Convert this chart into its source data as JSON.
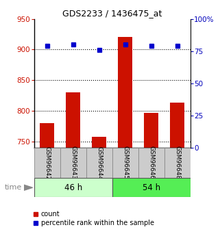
{
  "title": "GDS2233 / 1436475_at",
  "samples": [
    "GSM96642",
    "GSM96643",
    "GSM96644",
    "GSM96645",
    "GSM96646",
    "GSM96648"
  ],
  "counts": [
    780,
    830,
    757,
    920,
    797,
    813
  ],
  "percentiles": [
    79,
    80,
    76,
    80,
    79,
    79
  ],
  "ylim_left": [
    740,
    950
  ],
  "ylim_right": [
    0,
    100
  ],
  "yticks_left": [
    750,
    800,
    850,
    900,
    950
  ],
  "yticks_right": [
    0,
    25,
    50,
    75,
    100
  ],
  "groups": [
    {
      "label": "46 h",
      "color_light": "#ccffcc",
      "color_dark": "#55ee55"
    },
    {
      "label": "54 h",
      "color_light": "#55ee55",
      "color_dark": "#22cc22"
    }
  ],
  "bar_color": "#cc1100",
  "dot_color": "#0000cc",
  "bar_width": 0.55,
  "label_bg": "#cccccc",
  "left_tick_color": "#cc1100",
  "right_tick_color": "#0000bb",
  "time_label": "time",
  "legend_count": "count",
  "legend_pct": "percentile rank within the sample"
}
